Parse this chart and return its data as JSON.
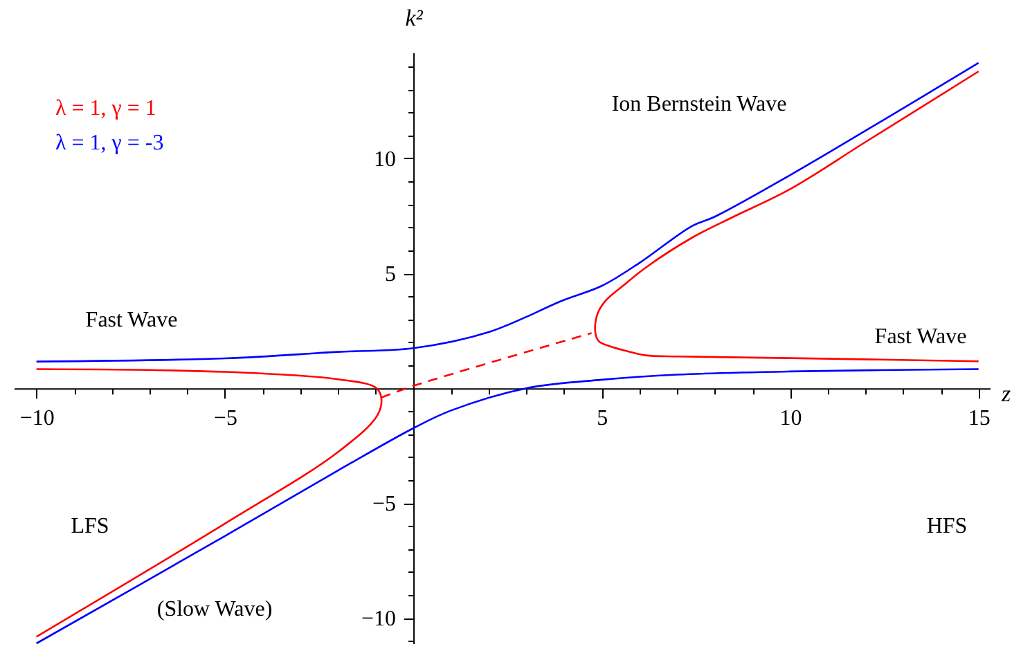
{
  "chart_data": {
    "type": "line",
    "xlabel": "z",
    "ylabel": "k²",
    "xlim": [
      -10.6,
      15.3
    ],
    "ylim": [
      -11.1,
      14.6
    ],
    "xticks": [
      -10,
      {
        "value": -9,
        "label": null
      },
      {
        "value": -8,
        "label": null
      },
      {
        "value": -7,
        "label": null
      },
      {
        "value": -6,
        "label": null
      },
      -5,
      {
        "value": -4,
        "label": null
      },
      {
        "value": -3,
        "label": null
      },
      {
        "value": -2,
        "label": null
      },
      {
        "value": -1,
        "label": null
      },
      {
        "value": 1,
        "label": null
      },
      {
        "value": 2,
        "label": null
      },
      {
        "value": 3,
        "label": null
      },
      {
        "value": 4,
        "label": null
      },
      5,
      {
        "value": 6,
        "label": null
      },
      {
        "value": 7,
        "label": null
      },
      {
        "value": 8,
        "label": null
      },
      {
        "value": 9,
        "label": null
      },
      10,
      {
        "value": 11,
        "label": null
      },
      {
        "value": 12,
        "label": null
      },
      {
        "value": 13,
        "label": null
      },
      {
        "value": 14,
        "label": null
      },
      15
    ],
    "yticks": [
      -10,
      {
        "value": -11,
        "label": null
      },
      {
        "value": -9,
        "label": null
      },
      {
        "value": -8,
        "label": null
      },
      {
        "value": -7,
        "label": null
      },
      {
        "value": -6,
        "label": null
      },
      -5,
      {
        "value": -4,
        "label": null
      },
      {
        "value": -3,
        "label": null
      },
      {
        "value": -2,
        "label": null
      },
      {
        "value": -1,
        "label": null
      },
      {
        "value": 1,
        "label": null
      },
      {
        "value": 2,
        "label": null
      },
      {
        "value": 3,
        "label": null
      },
      {
        "value": 4,
        "label": null
      },
      5,
      {
        "value": 6,
        "label": null
      },
      {
        "value": 7,
        "label": null
      },
      {
        "value": 8,
        "label": null
      },
      {
        "value": 9,
        "label": null
      },
      10,
      {
        "value": 11,
        "label": null
      },
      {
        "value": 12,
        "label": null
      },
      {
        "value": 13,
        "label": null
      },
      {
        "value": 14,
        "label": null
      }
    ],
    "legend": "top left",
    "grid": false,
    "marker": "none",
    "series": [
      {
        "name": "λ = 1, γ = 1",
        "color": "#ff0000",
        "line_style": "solid",
        "x": [
          -10,
          -5,
          -2,
          -1,
          -0.85,
          -0.95,
          -2,
          -5,
          -10
        ],
        "values": [
          0.83,
          0.71,
          0.39,
          0.03,
          -0.41,
          -1.17,
          -2.78,
          -5.89,
          -10.81
        ]
      },
      {
        "name": "λ = 1, γ = -3",
        "color": "#0000ff",
        "line_style": "solid",
        "x": [
          -10,
          -5,
          -2,
          0,
          2,
          4,
          5,
          6,
          7.4,
          8,
          10,
          12,
          15
        ],
        "values": [
          1.16,
          1.3,
          1.58,
          1.74,
          2.44,
          3.84,
          4.45,
          5.45,
          7.06,
          7.46,
          9.27,
          11.2,
          14.15
        ]
      },
      {
        "color": "#ff0000",
        "line_style": "solid",
        "x": [
          15,
          12,
          10,
          8.5,
          7.4,
          6.17,
          5.56,
          5.1,
          4.89,
          4.83,
          4.92,
          5.19,
          5.7,
          6.17,
          7,
          10,
          15
        ],
        "values": [
          13.78,
          10.71,
          8.66,
          7.46,
          6.55,
          5.25,
          4.45,
          3.8,
          3.24,
          2.44,
          2.05,
          1.84,
          1.6,
          1.43,
          1.38,
          1.31,
          1.17
        ]
      },
      {
        "color": "#ff0000",
        "line_style": "dashed",
        "x": [
          -0.85,
          0,
          4.73
        ],
        "values": [
          -0.41,
          0.1,
          2.4
        ]
      },
      {
        "color": "#0000ff",
        "line_style": "solid",
        "x": [
          -10,
          -5,
          -2,
          0,
          1,
          3,
          5,
          7,
          10,
          15
        ],
        "values": [
          -11.1,
          -6.43,
          -3.58,
          -1.74,
          -0.97,
          0,
          0.37,
          0.59,
          0.73,
          0.83
        ]
      }
    ],
    "annotations": [
      "Fast Wave",
      "Ion Bernstein Wave",
      "Fast Wave",
      "LFS",
      "HFS",
      "(Slow Wave)"
    ]
  }
}
